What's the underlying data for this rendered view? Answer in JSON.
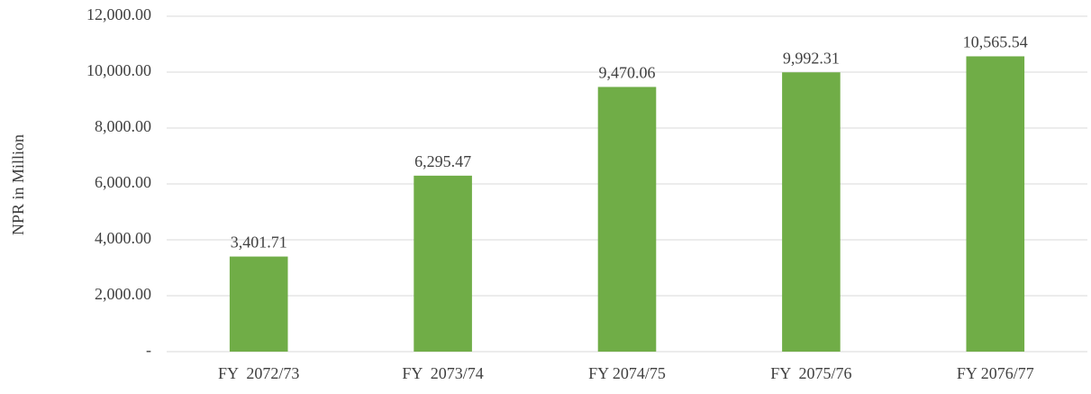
{
  "chart_data": {
    "type": "bar",
    "y_label": "NPR in Million",
    "categories": [
      "FY  2072/73",
      "FY  2073/74",
      "FY 2074/75",
      "FY  2075/76",
      "FY 2076/77"
    ],
    "values": [
      3401.71,
      6295.47,
      9470.06,
      9992.31,
      10565.54
    ],
    "value_labels": [
      "3,401.71",
      "6,295.47",
      "9,470.06",
      "9,992.31",
      "10,565.54"
    ],
    "color": "#70ad47",
    "ylim": [
      0,
      12000
    ],
    "yticks": [
      {
        "value": 0,
        "label": "-"
      },
      {
        "value": 2000,
        "label": "2,000.00"
      },
      {
        "value": 4000,
        "label": "4,000.00"
      },
      {
        "value": 6000,
        "label": "6,000.00"
      },
      {
        "value": 8000,
        "label": "8,000.00"
      },
      {
        "value": 10000,
        "label": "10,000.00"
      },
      {
        "value": 12000,
        "label": "12,000.00"
      }
    ],
    "grid": true
  }
}
